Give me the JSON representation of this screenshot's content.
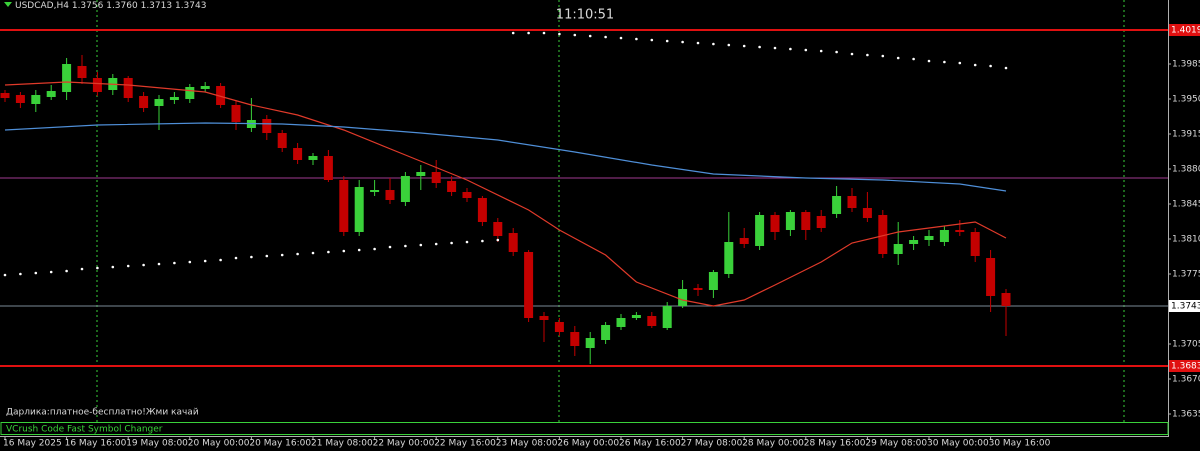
{
  "chart_data": {
    "type": "candlestick",
    "title": "USDCAD,H4",
    "header_labels": [
      "1.3756",
      "1.3760",
      "1.3713",
      "1.3743"
    ],
    "clock": "11:10:51",
    "annotation": "Дарлика:платное-бесплатно!Жми качай",
    "panel_label": "VCrush Code Fast Symbol Changer",
    "up_color": "#3ad13a",
    "down_color": "#c40000",
    "categories": [
      "16 May 2025",
      null,
      null,
      null,
      "16 May 16:00",
      null,
      null,
      null,
      "19 May 08:00",
      null,
      null,
      null,
      "20 May 00:00",
      null,
      null,
      null,
      "20 May 16:00",
      null,
      null,
      null,
      "21 May 08:00",
      null,
      null,
      null,
      "22 May 00:00",
      null,
      null,
      null,
      "22 May 16:00",
      null,
      null,
      null,
      "23 May 08:00",
      null,
      null,
      null,
      "26 May 00:00",
      null,
      null,
      null,
      "26 May 16:00",
      null,
      null,
      null,
      "27 May 08:00",
      null,
      null,
      null,
      "28 May 00:00",
      null,
      null,
      null,
      "28 May 16:00",
      null,
      null,
      null,
      "29 May 08:00",
      null,
      null,
      null,
      "30 May 00:00",
      null,
      null,
      null,
      "30 May 16:00",
      null
    ],
    "open": [
      1.3956,
      1.3954,
      1.3945,
      1.3952,
      1.3957,
      1.3983,
      1.3971,
      1.3959,
      1.3971,
      1.3953,
      1.3943,
      1.3949,
      1.395,
      1.396,
      1.3963,
      1.3944,
      1.3921,
      1.393,
      1.3916,
      1.3901,
      1.3889,
      1.3893,
      1.3869,
      1.3817,
      1.3857,
      1.3859,
      1.3847,
      1.3873,
      1.3877,
      1.3868,
      1.3857,
      1.3851,
      1.3827,
      1.3816,
      1.3797,
      1.3733,
      1.3727,
      1.3717,
      1.3701,
      1.3709,
      1.3722,
      1.3731,
      1.3733,
      1.3721,
      1.3743,
      1.3761,
      1.3759,
      1.3775,
      1.3811,
      1.3803,
      1.3834,
      1.3819,
      1.3837,
      1.3833,
      1.3835,
      1.3853,
      1.3841,
      1.3834,
      1.3795,
      1.3805,
      1.3809,
      1.3807,
      1.3819,
      1.3817,
      1.3791,
      1.3756
    ],
    "high": [
      1.3959,
      1.3957,
      1.3959,
      1.3964,
      1.3991,
      1.3994,
      1.3977,
      1.3975,
      1.3973,
      1.3957,
      1.3954,
      1.3957,
      1.3965,
      1.3967,
      1.3966,
      1.3949,
      1.3951,
      1.3934,
      1.3919,
      1.3906,
      1.3896,
      1.3899,
      1.3873,
      1.3869,
      1.3869,
      1.3871,
      1.3877,
      1.3884,
      1.3889,
      1.3873,
      1.3861,
      1.3853,
      1.3831,
      1.3821,
      1.3799,
      1.3737,
      1.3731,
      1.3723,
      1.3717,
      1.3727,
      1.3735,
      1.3737,
      1.3737,
      1.3747,
      1.3769,
      1.3765,
      1.3779,
      1.3837,
      1.3821,
      1.3837,
      1.3837,
      1.3839,
      1.3839,
      1.3839,
      1.3863,
      1.3861,
      1.3857,
      1.3839,
      1.3827,
      1.3813,
      1.3819,
      1.3823,
      1.3829,
      1.3821,
      1.3799,
      1.376
    ],
    "low": [
      1.3947,
      1.3941,
      1.3937,
      1.3949,
      1.3949,
      1.3965,
      1.3953,
      1.3954,
      1.3947,
      1.3937,
      1.3919,
      1.3945,
      1.3946,
      1.3957,
      1.3941,
      1.3919,
      1.3917,
      1.3909,
      1.3897,
      1.3885,
      1.3884,
      1.3867,
      1.3813,
      1.3813,
      1.3853,
      1.3845,
      1.3843,
      1.3859,
      1.3861,
      1.3853,
      1.3847,
      1.3823,
      1.3807,
      1.3793,
      1.3727,
      1.3707,
      1.3713,
      1.3693,
      1.3685,
      1.3705,
      1.3719,
      1.3729,
      1.3721,
      1.3719,
      1.3741,
      1.3753,
      1.3751,
      1.3771,
      1.3801,
      1.3799,
      1.3809,
      1.3813,
      1.3809,
      1.3817,
      1.3831,
      1.3837,
      1.3827,
      1.3791,
      1.3784,
      1.3799,
      1.3803,
      1.3803,
      1.3813,
      1.3787,
      1.3737,
      1.3713
    ],
    "close": [
      1.3951,
      1.3946,
      1.3954,
      1.3958,
      1.3985,
      1.3971,
      1.3957,
      1.3971,
      1.3951,
      1.3941,
      1.395,
      1.3952,
      1.3962,
      1.3963,
      1.3944,
      1.3927,
      1.3929,
      1.3916,
      1.3901,
      1.3889,
      1.3893,
      1.3869,
      1.3817,
      1.3862,
      1.3859,
      1.3849,
      1.3873,
      1.3877,
      1.3866,
      1.3857,
      1.3851,
      1.3827,
      1.3813,
      1.3797,
      1.3731,
      1.3729,
      1.3717,
      1.3703,
      1.3711,
      1.3724,
      1.3731,
      1.3734,
      1.3723,
      1.3743,
      1.376,
      1.3759,
      1.3777,
      1.3807,
      1.3805,
      1.3834,
      1.3817,
      1.3837,
      1.3819,
      1.3821,
      1.3853,
      1.3841,
      1.3831,
      1.3795,
      1.3805,
      1.3809,
      1.3813,
      1.3819,
      1.3817,
      1.3793,
      1.3753,
      1.3743
    ],
    "lines": [
      {
        "color": "#e03a2a",
        "x": [
          0,
          4,
          8,
          13,
          16,
          19,
          22,
          26,
          30,
          34,
          36,
          39,
          41,
          44,
          46,
          48,
          50,
          53,
          55,
          58,
          61,
          63,
          65
        ],
        "values": [
          1.3964,
          1.3967,
          1.3964,
          1.3957,
          1.3944,
          1.3934,
          1.3919,
          1.3894,
          1.3869,
          1.3839,
          1.3819,
          1.3794,
          1.3767,
          1.3749,
          1.3743,
          1.3749,
          1.3764,
          1.3787,
          1.3806,
          1.3817,
          1.3823,
          1.3827,
          1.3811
        ]
      },
      {
        "color": "#4f8fd8",
        "x": [
          0,
          6,
          13,
          18,
          22,
          27,
          32,
          37,
          42,
          46,
          52,
          57,
          62,
          65
        ],
        "values": [
          1.3919,
          1.3924,
          1.3926,
          1.3925,
          1.3922,
          1.3916,
          1.3909,
          1.3897,
          1.3884,
          1.3875,
          1.3871,
          1.3869,
          1.3865,
          1.3858
        ]
      }
    ],
    "dots": [
      {
        "color": "#ffffff",
        "values": [
          1.3774,
          1.3775,
          1.3776,
          1.3777,
          1.3778,
          1.378,
          1.3781,
          1.3782,
          1.3783,
          1.3784,
          1.3785,
          1.3786,
          1.3787,
          1.3788,
          1.3789,
          1.3791,
          1.3792,
          1.3793,
          1.3794,
          1.3795,
          1.3796,
          1.3797,
          1.3798,
          1.3799,
          1.38,
          1.3802,
          1.3803,
          1.3804,
          1.3805,
          1.3806,
          1.3807,
          1.3808,
          1.3809,
          null,
          null,
          null,
          null,
          null,
          null,
          null,
          null,
          null,
          null,
          null,
          null,
          null,
          null,
          null,
          null,
          null,
          null,
          null,
          null,
          null,
          null,
          null,
          null,
          null,
          null,
          null,
          null,
          null,
          null,
          null,
          null,
          null
        ]
      },
      {
        "color": "#ffffff",
        "values": [
          null,
          null,
          null,
          null,
          null,
          null,
          null,
          null,
          null,
          null,
          null,
          null,
          null,
          null,
          null,
          null,
          null,
          null,
          null,
          null,
          null,
          null,
          null,
          null,
          null,
          null,
          null,
          null,
          null,
          null,
          null,
          null,
          null,
          1.4016,
          1.4016,
          1.4016,
          1.4015,
          1.4014,
          1.4013,
          1.4012,
          1.4011,
          1.401,
          1.4009,
          1.4008,
          1.4007,
          1.4006,
          1.4005,
          1.4004,
          1.4003,
          1.4002,
          1.4001,
          1.4,
          1.3999,
          1.3998,
          1.3997,
          1.3995,
          1.3994,
          1.3993,
          1.3991,
          1.399,
          1.3988,
          1.3987,
          1.3986,
          1.3984,
          1.3983,
          1.3981
        ]
      }
    ],
    "hlines": [
      {
        "value": 1.4019,
        "color": "#e01010",
        "labeled": true
      },
      {
        "value": 1.3871,
        "color": "#a03a90",
        "labeled": false
      },
      {
        "value": 1.3743,
        "color": "#7a8a96",
        "labeled": true
      },
      {
        "value": 1.3683,
        "color": "#e01010",
        "labeled": true
      }
    ],
    "ylim": [
      1.3627,
      1.4049
    ],
    "yticks": [
      1.3985,
      {
        "value": 1.395,
        "label": "1.3950"
      },
      1.3915,
      {
        "value": 1.388,
        "label": "1.3880"
      },
      1.3845,
      {
        "value": 1.381,
        "label": "1.3810"
      },
      1.3775,
      1.3705,
      {
        "value": 1.367,
        "label": "1.3670"
      },
      1.3635
    ]
  }
}
